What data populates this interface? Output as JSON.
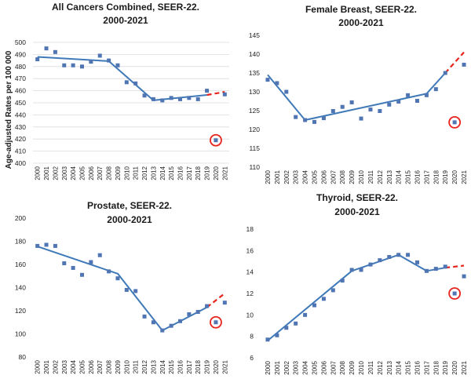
{
  "colors": {
    "points": "#4f75b3",
    "fit": "#3f79b8",
    "projection": "#e8231c",
    "outlier_ring": "#e8231c"
  },
  "chart_data": [
    {
      "type": "scatter",
      "title_lines": [
        "All Cancers Combined, SEER-22.",
        "2000-2021"
      ],
      "ylabel": "Age-adjusted Rates per 100 000",
      "ylim": [
        400,
        500
      ],
      "yticks": [
        400,
        410,
        420,
        430,
        440,
        450,
        460,
        470,
        480,
        490,
        500
      ],
      "grid": true,
      "x": [
        "2000",
        "2001",
        "2002",
        "2003",
        "2004",
        "2005",
        "2006",
        "2007",
        "2008",
        "2009",
        "2010",
        "2011",
        "2012",
        "2013",
        "2014",
        "2015",
        "2016",
        "2017",
        "2018",
        "2019",
        "2020",
        "2021"
      ],
      "observed": [
        486,
        495,
        492,
        481,
        481,
        480,
        484,
        489,
        485,
        481,
        467,
        466,
        456,
        453,
        452,
        454,
        453,
        454,
        453,
        460,
        419,
        457
      ],
      "fitted_trend": [
        {
          "x": "2000",
          "y": 488
        },
        {
          "x": "2008",
          "y": 484.5
        },
        {
          "x": "2013",
          "y": 452
        },
        {
          "x": "2019",
          "y": 456.5
        }
      ],
      "projection": [
        {
          "x": "2019",
          "y": 456.5
        },
        {
          "x": "2021",
          "y": 459
        }
      ],
      "highlighted": {
        "x": "2020",
        "y": 419
      }
    },
    {
      "type": "scatter",
      "title_lines": [
        "Female Breast, SEER-22.",
        "2000-2021"
      ],
      "ylabel": "",
      "ylim": [
        110,
        145
      ],
      "yticks": [
        110,
        115,
        120,
        125,
        130,
        135,
        140,
        145
      ],
      "grid": false,
      "x": [
        "2000",
        "2001",
        "2002",
        "2003",
        "2004",
        "2005",
        "2006",
        "2007",
        "2008",
        "2009",
        "2010",
        "2011",
        "2012",
        "2013",
        "2014",
        "2015",
        "2016",
        "2017",
        "2018",
        "2019",
        "2020",
        "2021"
      ],
      "observed": [
        133.2,
        132.3,
        130.0,
        123.3,
        122.5,
        122.0,
        123.0,
        124.9,
        126.0,
        127.2,
        122.9,
        125.3,
        124.9,
        126.6,
        127.4,
        129.1,
        127.6,
        129.1,
        130.7,
        135.0,
        121.9,
        137.2
      ],
      "fitted_trend": [
        {
          "x": "2000",
          "y": 134.5
        },
        {
          "x": "2004",
          "y": 122.5
        },
        {
          "x": "2017",
          "y": 129.5
        },
        {
          "x": "2019",
          "y": 135.0
        }
      ],
      "projection": [
        {
          "x": "2019",
          "y": 135.0
        },
        {
          "x": "2021",
          "y": 140.5
        }
      ],
      "highlighted": {
        "x": "2020",
        "y": 121.9
      }
    },
    {
      "type": "scatter",
      "title_lines": [
        "Prostate, SEER-22.",
        "2000-2021"
      ],
      "ylabel": "",
      "ylim": [
        80,
        200
      ],
      "yticks": [
        80,
        100,
        120,
        140,
        160,
        180,
        200
      ],
      "grid": false,
      "x": [
        "2000",
        "2001",
        "2002",
        "2003",
        "2004",
        "2005",
        "2006",
        "2007",
        "2008",
        "2009",
        "2010",
        "2011",
        "2012",
        "2013",
        "2014",
        "2015",
        "2016",
        "2017",
        "2018",
        "2019",
        "2020",
        "2021"
      ],
      "observed": [
        176,
        177,
        176,
        161,
        157,
        151,
        162,
        168,
        154,
        148,
        138,
        137,
        115,
        110,
        103,
        107,
        111,
        117,
        119,
        124,
        110,
        127
      ],
      "fitted_trend": [
        {
          "x": "2000",
          "y": 175.5
        },
        {
          "x": "2009",
          "y": 152
        },
        {
          "x": "2014",
          "y": 103
        },
        {
          "x": "2019",
          "y": 123
        }
      ],
      "projection": [
        {
          "x": "2019",
          "y": 123
        },
        {
          "x": "2021",
          "y": 135
        }
      ],
      "highlighted": {
        "x": "2020",
        "y": 110
      }
    },
    {
      "type": "scatter",
      "title_lines": [
        "Thyroid, SEER-22.",
        "2000-2021"
      ],
      "ylabel": "",
      "ylim": [
        6,
        18
      ],
      "yticks": [
        6,
        8,
        10,
        12,
        14,
        16,
        18
      ],
      "grid": false,
      "x": [
        "2000",
        "2001",
        "2002",
        "2003",
        "2004",
        "2005",
        "2006",
        "2007",
        "2008",
        "2009",
        "2010",
        "2011",
        "2012",
        "2013",
        "2014",
        "2015",
        "2016",
        "2017",
        "2018",
        "2019",
        "2020",
        "2021"
      ],
      "observed": [
        7.7,
        8.1,
        8.8,
        9.2,
        10.0,
        10.9,
        11.5,
        12.3,
        13.2,
        14.2,
        14.2,
        14.7,
        15.1,
        15.4,
        15.6,
        15.6,
        14.9,
        14.1,
        14.3,
        14.5,
        12.0,
        13.6
      ],
      "fitted_trend": [
        {
          "x": "2000",
          "y": 7.6
        },
        {
          "x": "2009",
          "y": 14.1
        },
        {
          "x": "2014",
          "y": 15.6
        },
        {
          "x": "2017",
          "y": 14.1
        },
        {
          "x": "2019",
          "y": 14.4
        }
      ],
      "projection": [
        {
          "x": "2019",
          "y": 14.4
        },
        {
          "x": "2021",
          "y": 14.6
        }
      ],
      "highlighted": {
        "x": "2020",
        "y": 12.0
      }
    }
  ]
}
